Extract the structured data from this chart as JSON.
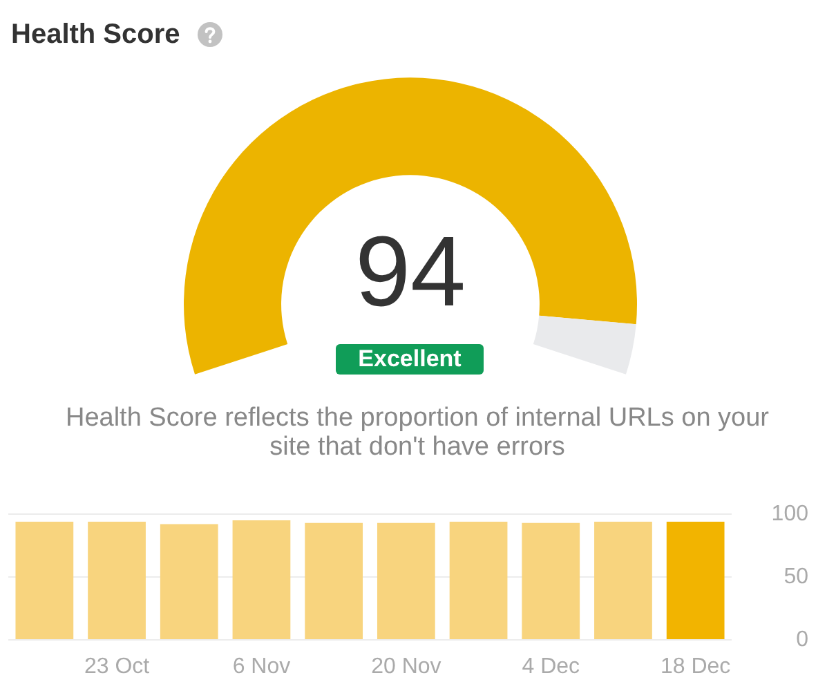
{
  "chart_data": [
    {
      "type": "donut",
      "title": "Health Score",
      "categories": [
        null,
        null
      ],
      "values": [
        94,
        6
      ],
      "colors": [
        "#ecb400",
        "#e9eaec"
      ],
      "annotations": [
        "94",
        "Excellent",
        "Health Score reflects the proportion of internal URLs on your site that don't have errors"
      ]
    },
    {
      "type": "bar",
      "categories": [
        null,
        "23 Oct",
        null,
        "6 Nov",
        null,
        "20 Nov",
        null,
        "4 Dec",
        null,
        "18 Dec"
      ],
      "values": [
        94,
        94,
        92,
        95,
        93,
        93,
        94,
        93,
        94,
        94
      ],
      "colors": [
        "#f8d47e",
        "#f8d47e",
        "#f8d47e",
        "#f8d47e",
        "#f8d47e",
        "#f8d47e",
        "#f8d47e",
        "#f8d47e",
        "#f8d47e",
        "#f2b400"
      ],
      "ylim": [
        0,
        100
      ],
      "yticks": [
        0,
        50,
        100
      ],
      "grid": "y"
    }
  ]
}
